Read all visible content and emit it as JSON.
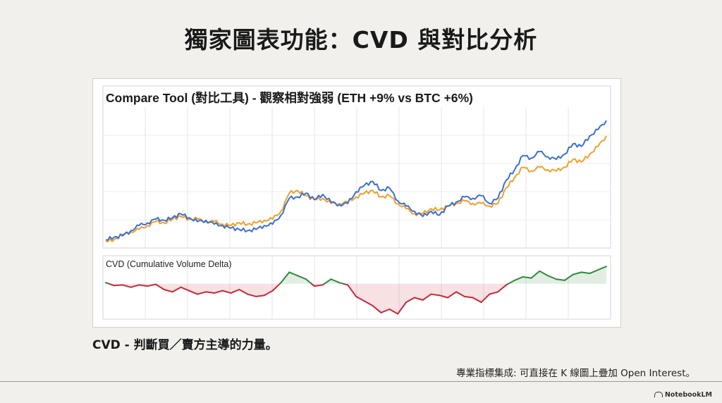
{
  "header": {
    "title": "獨家圖表功能：CVD 與對比分析"
  },
  "caption": "CVD - 判斷買／賣方主導的力量。",
  "footnote": "專業指標集成: 可直接在 K 線圖上疊加 Open Interest。",
  "brand": {
    "name": "NotebookLM",
    "icon": "notebook-logo-icon"
  },
  "colors": {
    "eth": "#3a6fd8",
    "btc": "#f0a02a",
    "cvd_positive": "#2f8a3b",
    "cvd_negative": "#c8283a"
  },
  "chart_data": [
    {
      "type": "line",
      "title": "Compare Tool (對比工具) - 觀察相對強弱 (ETH +9% vs BTC +6%)",
      "xlabel": "",
      "ylabel": "",
      "grid": true,
      "legend": "none",
      "x": [
        0,
        1,
        2,
        3,
        4,
        5,
        6,
        7,
        8,
        9,
        10,
        11,
        12,
        13,
        14,
        15,
        16,
        17,
        18,
        19,
        20,
        21,
        22,
        23,
        24,
        25,
        26,
        27,
        28,
        29,
        30,
        31,
        32,
        33,
        34,
        35,
        36,
        37,
        38,
        39,
        40,
        41,
        42,
        43,
        44,
        45,
        46,
        47,
        48,
        49,
        50,
        51,
        52,
        53,
        54,
        55,
        56,
        57,
        58,
        59,
        60
      ],
      "ylim": [
        0,
        100
      ],
      "series": [
        {
          "name": "ETH",
          "color": "#3a6fd8",
          "values": [
            2,
            4,
            5,
            9,
            13,
            15,
            18,
            17,
            19,
            22,
            19,
            16,
            17,
            14,
            13,
            11,
            10,
            9,
            10,
            13,
            14,
            21,
            34,
            35,
            38,
            33,
            37,
            31,
            29,
            30,
            39,
            44,
            47,
            40,
            42,
            32,
            28,
            24,
            20,
            24,
            21,
            28,
            31,
            35,
            34,
            36,
            30,
            34,
            48,
            56,
            67,
            65,
            70,
            66,
            64,
            68,
            76,
            74,
            82,
            87,
            94
          ]
        },
        {
          "name": "BTC",
          "color": "#f0a02a",
          "values": [
            1,
            2,
            6,
            8,
            10,
            13,
            16,
            15,
            18,
            20,
            18,
            18,
            16,
            16,
            14,
            13,
            15,
            14,
            15,
            17,
            18,
            24,
            38,
            40,
            36,
            33,
            34,
            30,
            30,
            31,
            35,
            38,
            40,
            35,
            36,
            30,
            26,
            22,
            22,
            26,
            25,
            28,
            30,
            32,
            30,
            30,
            28,
            30,
            42,
            50,
            58,
            55,
            58,
            56,
            55,
            58,
            64,
            62,
            68,
            74,
            82
          ]
        }
      ]
    },
    {
      "type": "area",
      "title": "CVD (Cumulative Volume Delta)",
      "xlabel": "",
      "ylabel": "",
      "grid": true,
      "legend": "none",
      "baseline": 0,
      "ylim": [
        -60,
        40
      ],
      "x": [
        0,
        1,
        2,
        3,
        4,
        5,
        6,
        7,
        8,
        9,
        10,
        11,
        12,
        13,
        14,
        15,
        16,
        17,
        18,
        19,
        20,
        21,
        22,
        23,
        24,
        25,
        26,
        27,
        28,
        29,
        30,
        31,
        32,
        33,
        34,
        35,
        36,
        37,
        38,
        39,
        40,
        41,
        42,
        43,
        44,
        45,
        46,
        47,
        48,
        49,
        50,
        51,
        52,
        53,
        54,
        55,
        56,
        57,
        58,
        59,
        60
      ],
      "series": [
        {
          "name": "CVD",
          "values": [
            2,
            -3,
            -2,
            -6,
            -2,
            -4,
            -1,
            -10,
            -14,
            -6,
            -12,
            -18,
            -14,
            -16,
            -12,
            -16,
            -10,
            -18,
            -22,
            -20,
            -12,
            2,
            20,
            14,
            8,
            -4,
            -2,
            8,
            2,
            -2,
            -22,
            -30,
            -38,
            -50,
            -44,
            -52,
            -32,
            -24,
            -28,
            -18,
            -20,
            -24,
            -14,
            -22,
            -24,
            -32,
            -18,
            -14,
            -2,
            6,
            12,
            10,
            22,
            14,
            8,
            6,
            16,
            20,
            18,
            24,
            30
          ]
        }
      ]
    }
  ]
}
